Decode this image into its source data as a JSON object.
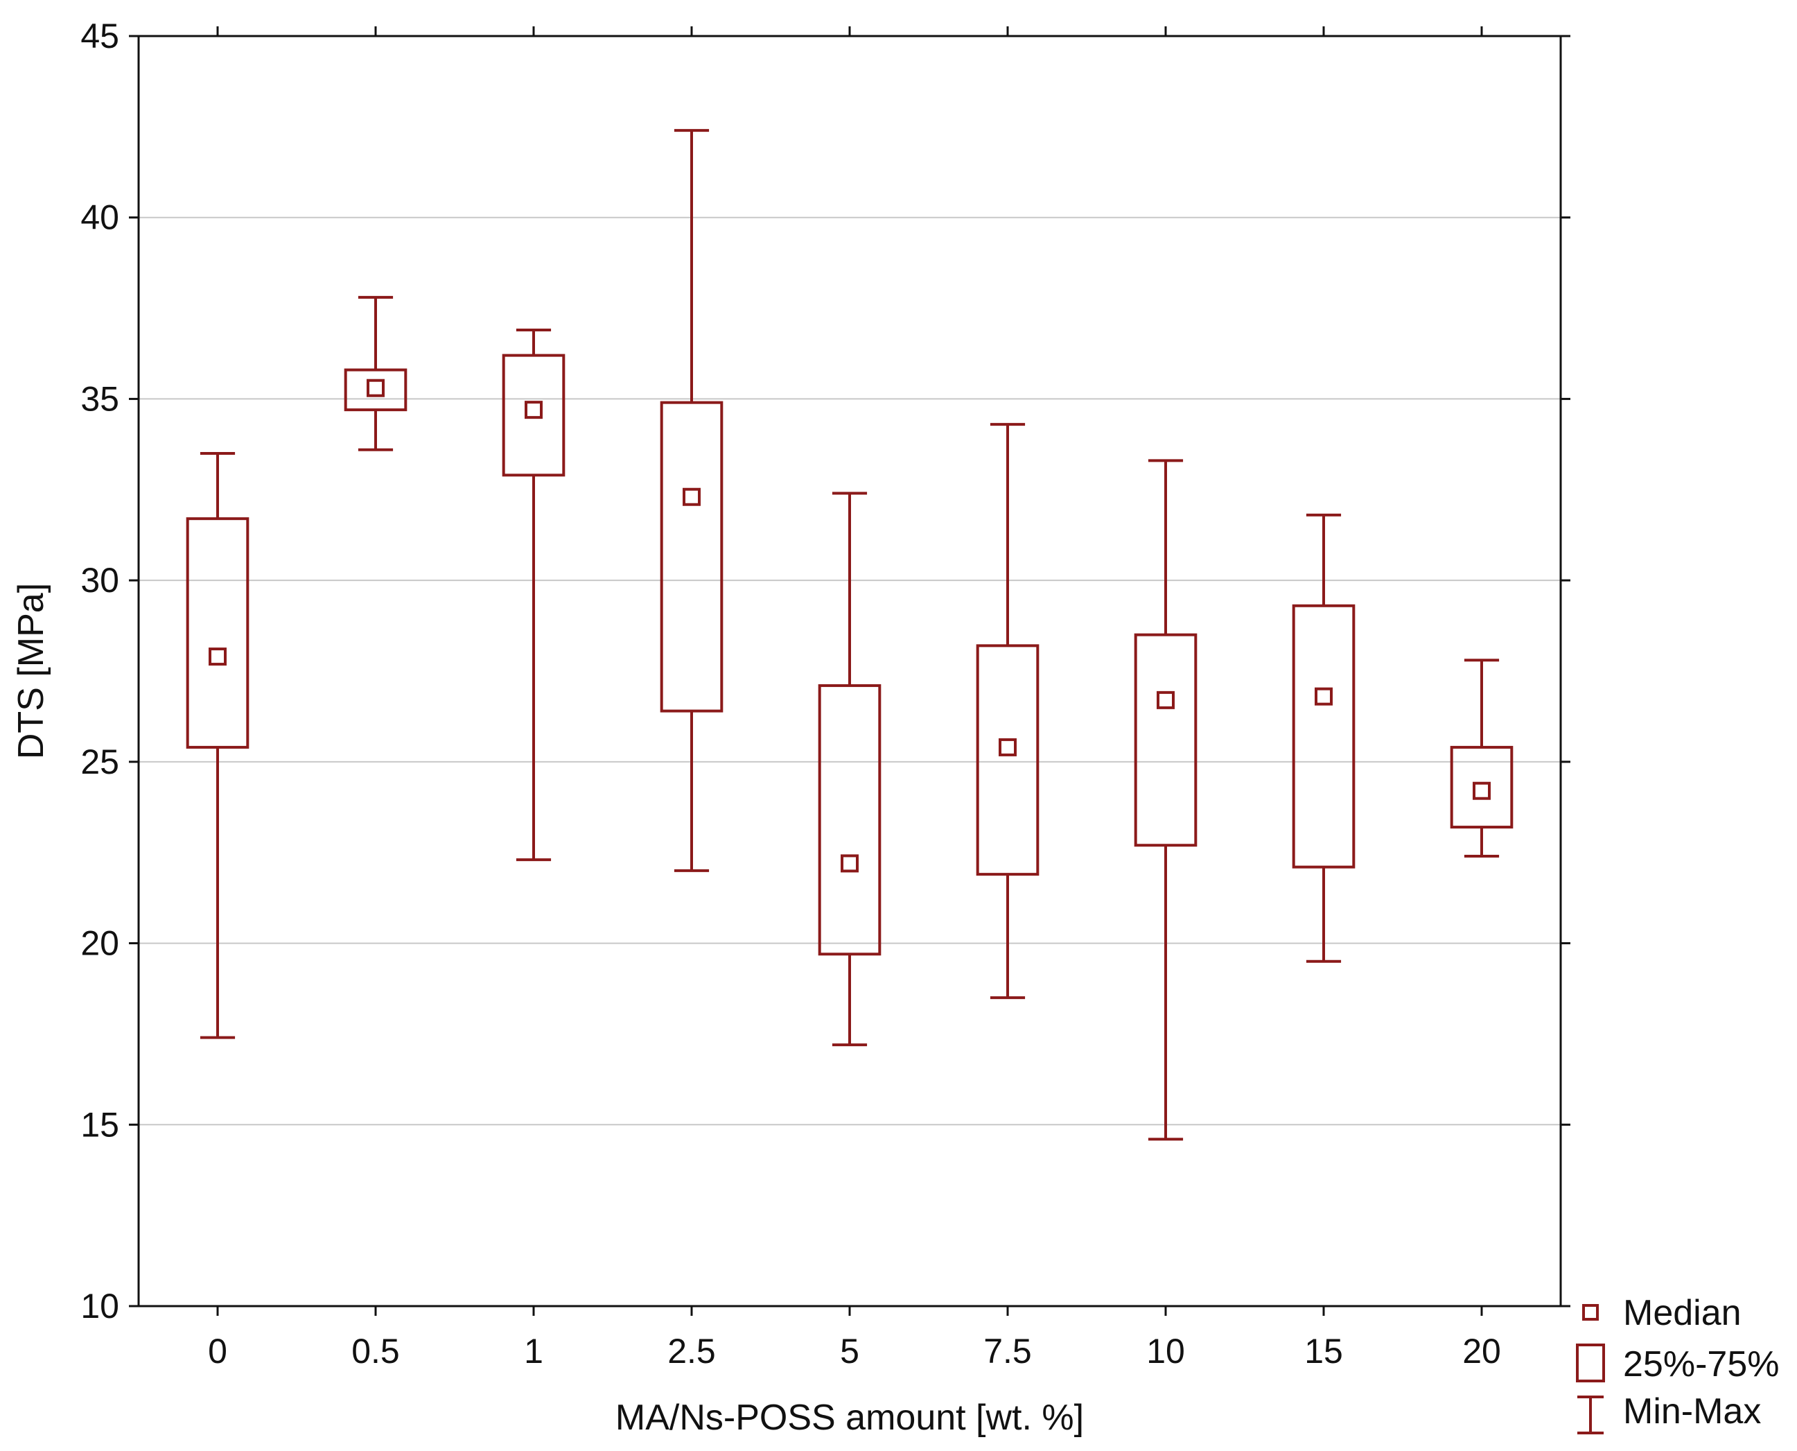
{
  "chart_data": {
    "type": "box",
    "title": "",
    "xlabel": "MA/Ns-POSS amount [wt. %]",
    "ylabel": "DTS [MPa]",
    "ylim": [
      10,
      45
    ],
    "yticks": [
      "10",
      "15",
      "20",
      "25",
      "30",
      "35",
      "40",
      "45"
    ],
    "grid": "horizontal",
    "legend_position": "bottom-right outside plot",
    "color": "#8b1a1a",
    "grid_color": "#c8c8c8",
    "categories": [
      "0",
      "0.5",
      "1",
      "2.5",
      "5",
      "7.5",
      "10",
      "15",
      "20"
    ],
    "boxes": [
      {
        "min": 17.4,
        "q1": 25.4,
        "median": 27.9,
        "q3": 31.7,
        "max": 33.5
      },
      {
        "min": 33.6,
        "q1": 34.7,
        "median": 35.3,
        "q3": 35.8,
        "max": 37.8
      },
      {
        "min": 22.3,
        "q1": 32.9,
        "median": 34.7,
        "q3": 36.2,
        "max": 36.9
      },
      {
        "min": 22.0,
        "q1": 26.4,
        "median": 32.3,
        "q3": 34.9,
        "max": 42.4
      },
      {
        "min": 17.2,
        "q1": 19.7,
        "median": 22.2,
        "q3": 27.1,
        "max": 32.4
      },
      {
        "min": 18.5,
        "q1": 21.9,
        "median": 25.4,
        "q3": 28.2,
        "max": 34.3
      },
      {
        "min": 14.6,
        "q1": 22.7,
        "median": 26.7,
        "q3": 28.5,
        "max": 33.3
      },
      {
        "min": 19.5,
        "q1": 22.1,
        "median": 26.8,
        "q3": 29.3,
        "max": 31.8
      },
      {
        "min": 22.4,
        "q1": 23.2,
        "median": 24.2,
        "q3": 25.4,
        "max": 27.8
      }
    ],
    "legend": {
      "median": "Median",
      "box": "25%-75%",
      "whisker": "Min-Max"
    }
  }
}
